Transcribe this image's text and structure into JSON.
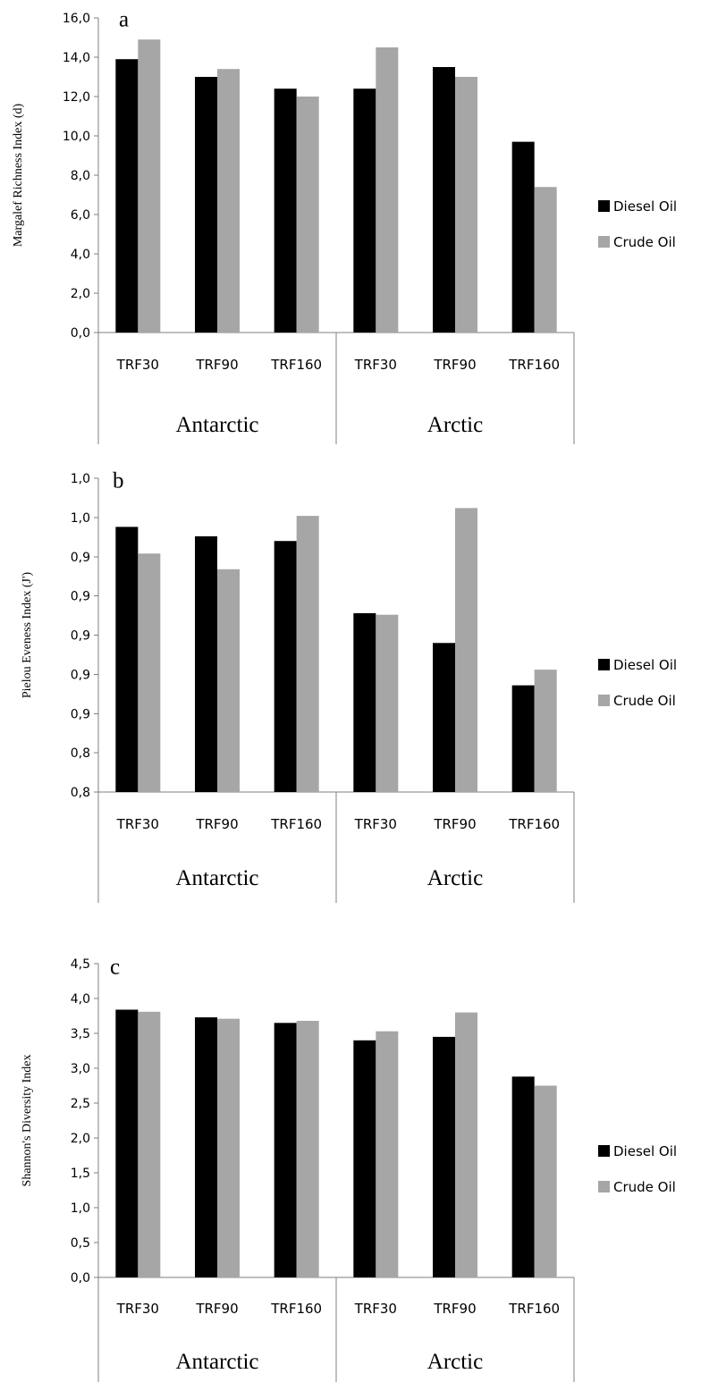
{
  "chart_data": [
    {
      "type": "bar",
      "panel_label": "a",
      "ylabel": "Margalef Richness Index (d)",
      "ylim": [
        0,
        16
      ],
      "yticks": [
        "0,0",
        "2,0",
        "4,0",
        "6,0",
        "8,0",
        "10,0",
        "12,0",
        "14,0",
        "16,0"
      ],
      "groups": [
        {
          "name": "Antarctic",
          "categories": [
            "TRF30",
            "TRF90",
            "TRF160"
          ]
        },
        {
          "name": "Arctic",
          "categories": [
            "TRF30",
            "TRF90",
            "TRF160"
          ]
        }
      ],
      "series": [
        {
          "name": "Diesel Oil",
          "color": "#000000",
          "values": [
            13.9,
            13.0,
            12.4,
            12.4,
            13.5,
            9.7
          ]
        },
        {
          "name": "Crude Oil",
          "color": "#a6a6a6",
          "values": [
            14.9,
            13.4,
            12.0,
            14.5,
            13.0,
            7.4
          ]
        }
      ],
      "legend": "right"
    },
    {
      "type": "bar",
      "panel_label": "b",
      "ylabel": "Pielou Eveness Index (J')",
      "ylim": [
        0.8,
        1.0
      ],
      "yticks": [
        "0,8",
        "0,8",
        "0,9",
        "0,9",
        "0,9",
        "0,9",
        "0,9",
        "1,0",
        "1,0"
      ],
      "groups": [
        {
          "name": "Antarctic",
          "categories": [
            "TRF30",
            "TRF90",
            "TRF160"
          ]
        },
        {
          "name": "Arctic",
          "categories": [
            "TRF30",
            "TRF90",
            "TRF160"
          ]
        }
      ],
      "series": [
        {
          "name": "Diesel Oil",
          "color": "#000000",
          "values": [
            0.969,
            0.963,
            0.96,
            0.914,
            0.895,
            0.868
          ]
        },
        {
          "name": "Crude Oil",
          "color": "#a6a6a6",
          "values": [
            0.952,
            0.942,
            0.976,
            0.913,
            0.981,
            0.878
          ]
        }
      ],
      "legend": "right"
    },
    {
      "type": "bar",
      "panel_label": "c",
      "ylabel": "Shannon's Diversity Index",
      "ylim": [
        0,
        4.5
      ],
      "yticks": [
        "0,0",
        "0,5",
        "1,0",
        "1,5",
        "2,0",
        "2,5",
        "3,0",
        "3,5",
        "4,0",
        "4,5"
      ],
      "groups": [
        {
          "name": "Antarctic",
          "categories": [
            "TRF30",
            "TRF90",
            "TRF160"
          ]
        },
        {
          "name": "Arctic",
          "categories": [
            "TRF30",
            "TRF90",
            "TRF160"
          ]
        }
      ],
      "series": [
        {
          "name": "Diesel Oil",
          "color": "#000000",
          "values": [
            3.84,
            3.73,
            3.65,
            3.4,
            3.45,
            2.88
          ]
        },
        {
          "name": "Crude Oil",
          "color": "#a6a6a6",
          "values": [
            3.81,
            3.71,
            3.68,
            3.53,
            3.8,
            2.75
          ]
        }
      ],
      "legend": "right"
    }
  ]
}
